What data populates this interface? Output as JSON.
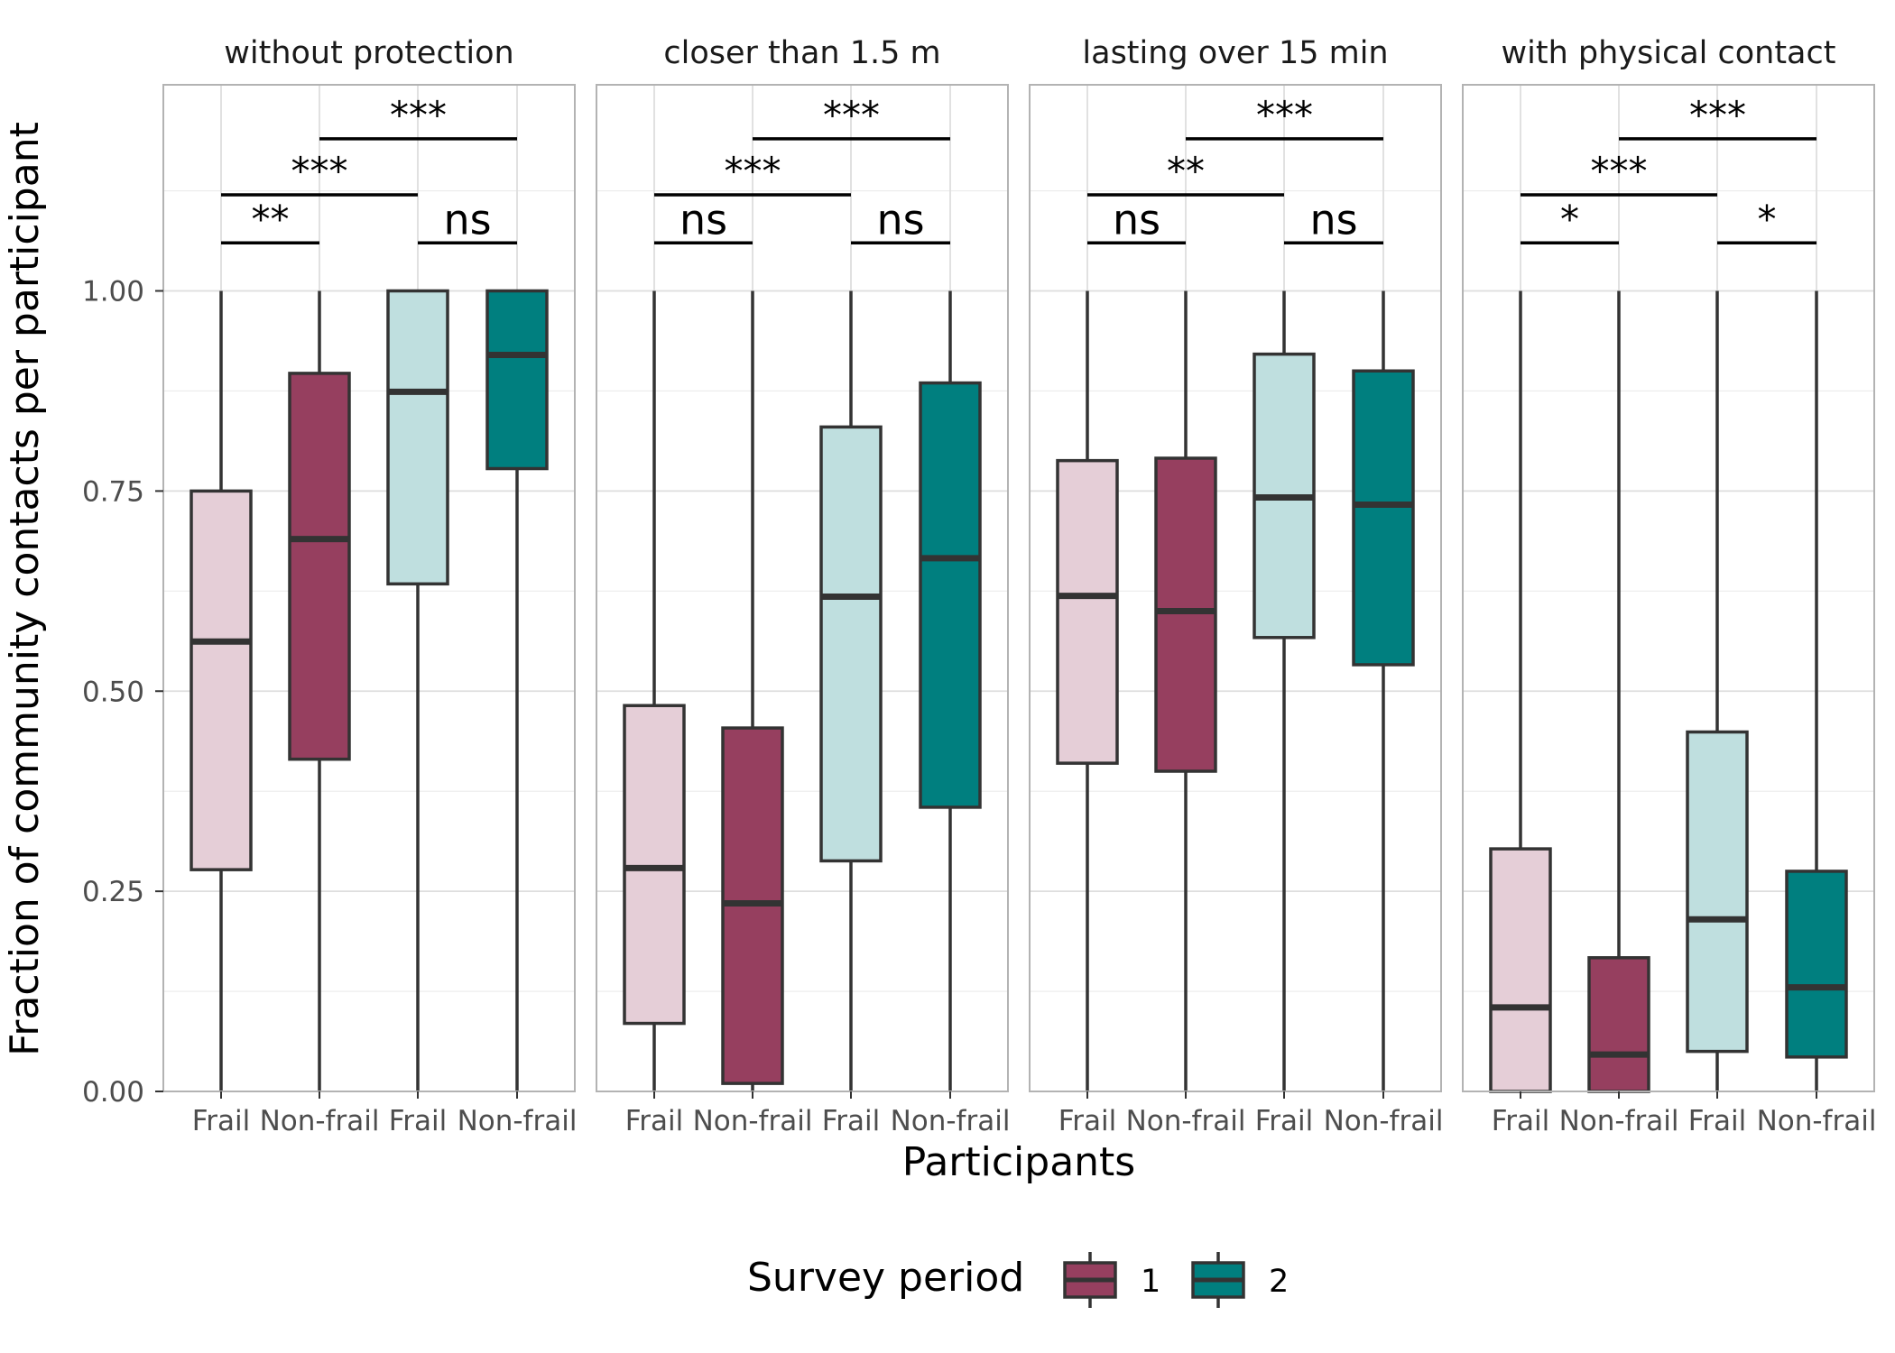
{
  "chart_data": {
    "type": "boxplot",
    "xlabel": "Participants",
    "ylabel": "Fraction of community contacts per participant",
    "ylim": [
      0,
      1.26
    ],
    "yticks": [
      "0.00",
      "0.25",
      "0.50",
      "0.75",
      "1.00"
    ],
    "ytick_values": [
      0,
      0.25,
      0.5,
      0.75,
      1.0
    ],
    "categories": [
      "Frail",
      "Non-frail",
      "Frail",
      "Non-frail"
    ],
    "category_period": [
      1,
      1,
      2,
      2
    ],
    "grid": true,
    "legend": {
      "title": "Survey period",
      "position": "bottom",
      "entries": [
        {
          "label": "1",
          "color": "#963F5F"
        },
        {
          "label": "2",
          "color": "#007F7F"
        }
      ]
    },
    "colors": {
      "period1_frail": "#CC9EAF",
      "period1_nonfrail": "#963F5F",
      "period2_frail": "#7FBFBF",
      "period2_nonfrail": "#007F7F",
      "outline": "#333333",
      "grid": "#DEDEDE",
      "panel_border": "#B3B3B3"
    },
    "facets": [
      {
        "title": "without protection",
        "boxes": [
          {
            "min": 0.0,
            "q1": 0.277,
            "median": 0.562,
            "q3": 0.75,
            "max": 1.0
          },
          {
            "min": 0.0,
            "q1": 0.415,
            "median": 0.69,
            "q3": 0.897,
            "max": 1.0
          },
          {
            "min": 0.0,
            "q1": 0.634,
            "median": 0.874,
            "q3": 1.0,
            "max": 1.0
          },
          {
            "min": 0.0,
            "q1": 0.778,
            "median": 0.92,
            "q3": 1.0,
            "max": 1.0
          }
        ],
        "comparisons": [
          {
            "from": 0,
            "to": 1,
            "label": "**",
            "y": 1.06
          },
          {
            "from": 2,
            "to": 3,
            "label": "ns",
            "y": 1.06
          },
          {
            "from": 0,
            "to": 2,
            "label": "***",
            "y": 1.12
          },
          {
            "from": 1,
            "to": 3,
            "label": "***",
            "y": 1.19
          }
        ]
      },
      {
        "title": "closer than 1.5 m",
        "boxes": [
          {
            "min": 0.0,
            "q1": 0.085,
            "median": 0.279,
            "q3": 0.482,
            "max": 1.0
          },
          {
            "min": 0.0,
            "q1": 0.01,
            "median": 0.235,
            "q3": 0.454,
            "max": 1.0
          },
          {
            "min": 0.0,
            "q1": 0.288,
            "median": 0.618,
            "q3": 0.83,
            "max": 1.0
          },
          {
            "min": 0.0,
            "q1": 0.355,
            "median": 0.666,
            "q3": 0.885,
            "max": 1.0
          }
        ],
        "comparisons": [
          {
            "from": 0,
            "to": 1,
            "label": "ns",
            "y": 1.06
          },
          {
            "from": 2,
            "to": 3,
            "label": "ns",
            "y": 1.06
          },
          {
            "from": 0,
            "to": 2,
            "label": "***",
            "y": 1.12
          },
          {
            "from": 1,
            "to": 3,
            "label": "***",
            "y": 1.19
          }
        ]
      },
      {
        "title": "lasting over 15 min",
        "boxes": [
          {
            "min": 0.0,
            "q1": 0.41,
            "median": 0.619,
            "q3": 0.788,
            "max": 1.0
          },
          {
            "min": 0.0,
            "q1": 0.4,
            "median": 0.6,
            "q3": 0.791,
            "max": 1.0
          },
          {
            "min": 0.0,
            "q1": 0.567,
            "median": 0.742,
            "q3": 0.921,
            "max": 1.0
          },
          {
            "min": 0.0,
            "q1": 0.533,
            "median": 0.733,
            "q3": 0.9,
            "max": 1.0
          }
        ],
        "comparisons": [
          {
            "from": 0,
            "to": 1,
            "label": "ns",
            "y": 1.06
          },
          {
            "from": 2,
            "to": 3,
            "label": "ns",
            "y": 1.06
          },
          {
            "from": 0,
            "to": 2,
            "label": "**",
            "y": 1.12
          },
          {
            "from": 1,
            "to": 3,
            "label": "***",
            "y": 1.19
          }
        ]
      },
      {
        "title": "with physical contact",
        "boxes": [
          {
            "min": 0.0,
            "q1": 0.0,
            "median": 0.105,
            "q3": 0.303,
            "max": 1.0
          },
          {
            "min": 0.0,
            "q1": 0.0,
            "median": 0.046,
            "q3": 0.167,
            "max": 1.0
          },
          {
            "min": 0.0,
            "q1": 0.05,
            "median": 0.215,
            "q3": 0.449,
            "max": 1.0
          },
          {
            "min": 0.0,
            "q1": 0.043,
            "median": 0.13,
            "q3": 0.275,
            "max": 1.0
          }
        ],
        "comparisons": [
          {
            "from": 0,
            "to": 1,
            "label": "*",
            "y": 1.06
          },
          {
            "from": 2,
            "to": 3,
            "label": "*",
            "y": 1.06
          },
          {
            "from": 0,
            "to": 2,
            "label": "***",
            "y": 1.12
          },
          {
            "from": 1,
            "to": 3,
            "label": "***",
            "y": 1.19
          }
        ]
      }
    ]
  }
}
